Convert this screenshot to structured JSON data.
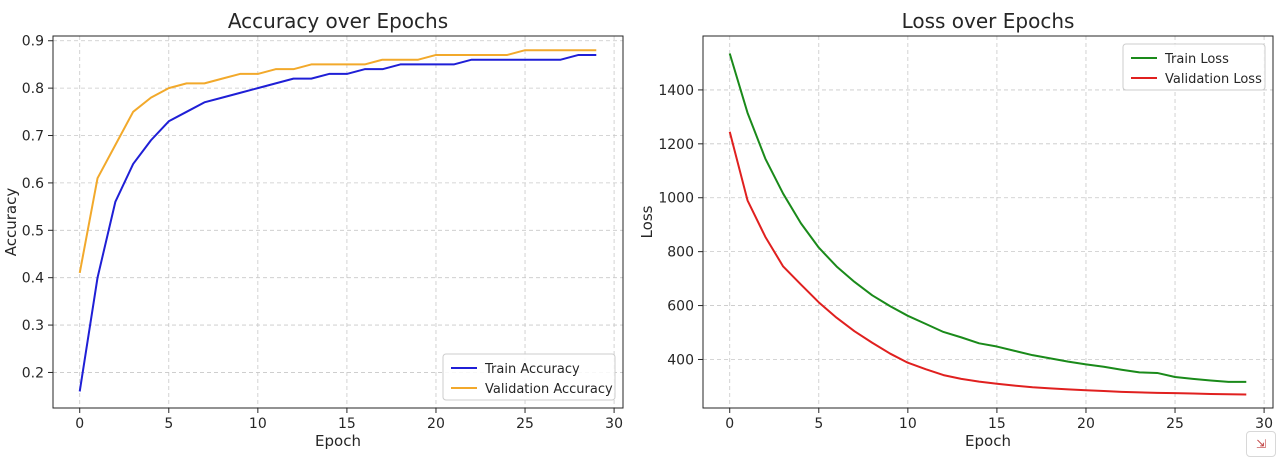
{
  "chart_data": [
    {
      "type": "line",
      "title": "Accuracy over Epochs",
      "xlabel": "Epoch",
      "ylabel": "Accuracy",
      "xlim": [
        -1.5,
        30.5
      ],
      "ylim": [
        0.125,
        0.91
      ],
      "xticks": [
        0,
        5,
        10,
        15,
        20,
        25,
        30
      ],
      "yticks": [
        0.2,
        0.3,
        0.4,
        0.5,
        0.6,
        0.7,
        0.8,
        0.9
      ],
      "grid": true,
      "legend_position": "bottom-right",
      "x": [
        0,
        1,
        2,
        3,
        4,
        5,
        6,
        7,
        8,
        9,
        10,
        11,
        12,
        13,
        14,
        15,
        16,
        17,
        18,
        19,
        20,
        21,
        22,
        23,
        24,
        25,
        26,
        27,
        28,
        29
      ],
      "series": [
        {
          "name": "Train Accuracy",
          "color": "#1f1fd6",
          "values": [
            0.16,
            0.4,
            0.56,
            0.64,
            0.69,
            0.73,
            0.75,
            0.77,
            0.78,
            0.79,
            0.8,
            0.81,
            0.82,
            0.82,
            0.83,
            0.83,
            0.84,
            0.84,
            0.85,
            0.85,
            0.85,
            0.85,
            0.86,
            0.86,
            0.86,
            0.86,
            0.86,
            0.86,
            0.87,
            0.87
          ]
        },
        {
          "name": "Validation Accuracy",
          "color": "#f2a92b",
          "values": [
            0.41,
            0.61,
            0.68,
            0.75,
            0.78,
            0.8,
            0.81,
            0.81,
            0.82,
            0.83,
            0.83,
            0.84,
            0.84,
            0.85,
            0.85,
            0.85,
            0.85,
            0.86,
            0.86,
            0.86,
            0.87,
            0.87,
            0.87,
            0.87,
            0.87,
            0.88,
            0.88,
            0.88,
            0.88,
            0.88
          ]
        }
      ]
    },
    {
      "type": "line",
      "title": "Loss over Epochs",
      "xlabel": "Epoch",
      "ylabel": "Loss",
      "xlim": [
        -1.5,
        30.5
      ],
      "ylim": [
        220,
        1600
      ],
      "xticks": [
        0,
        5,
        10,
        15,
        20,
        25,
        30
      ],
      "yticks": [
        400,
        600,
        800,
        1000,
        1200,
        1400
      ],
      "grid": true,
      "legend_position": "top-right",
      "x": [
        0,
        1,
        2,
        3,
        4,
        5,
        6,
        7,
        8,
        9,
        10,
        11,
        12,
        13,
        14,
        15,
        16,
        17,
        18,
        19,
        20,
        21,
        22,
        23,
        24,
        25,
        26,
        27,
        28,
        29
      ],
      "series": [
        {
          "name": "Train Loss",
          "color": "#1a8a1a",
          "values": [
            1535,
            1315,
            1145,
            1015,
            905,
            815,
            745,
            688,
            638,
            598,
            562,
            532,
            502,
            482,
            460,
            448,
            432,
            416,
            404,
            392,
            382,
            373,
            362,
            352,
            350,
            335,
            328,
            322,
            317,
            317
          ]
        },
        {
          "name": "Validation Loss",
          "color": "#e0201f",
          "values": [
            1245,
            990,
            855,
            745,
            678,
            612,
            555,
            505,
            462,
            422,
            388,
            364,
            342,
            328,
            318,
            310,
            303,
            297,
            293,
            289,
            286,
            283,
            280,
            278,
            276,
            275,
            274,
            272,
            271,
            270
          ]
        }
      ]
    }
  ]
}
